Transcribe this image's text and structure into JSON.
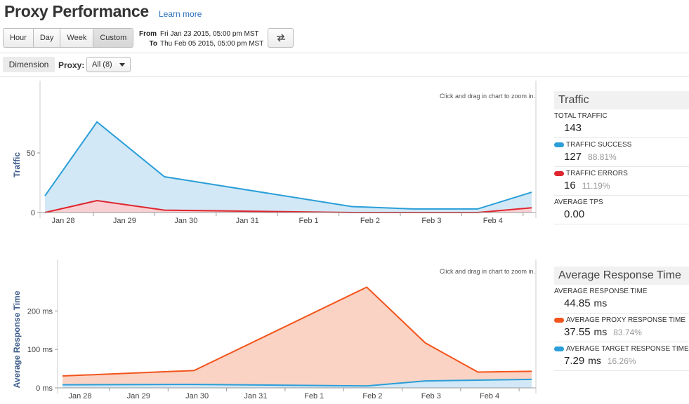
{
  "header": {
    "title": "Proxy Performance",
    "learn_more": "Learn more"
  },
  "toolbar": {
    "ranges": [
      "Hour",
      "Day",
      "Week",
      "Custom"
    ],
    "active_range": "Custom",
    "from_label": "From",
    "from_value": "Fri Jan 23 2015, 05:00 pm MST",
    "to_label": "To",
    "to_value": "Thu Feb 05 2015, 05:00 pm MST",
    "swap_icon": "swap-arrows-icon"
  },
  "filter": {
    "dimension_label": "Dimension",
    "proxy_label": "Proxy:",
    "proxy_selected": "All (8)"
  },
  "zoom_hint": "Click and drag in chart to zoom in.",
  "traffic_panel": {
    "title": "Traffic",
    "metrics": [
      {
        "label": "TOTAL TRAFFIC",
        "value": "143",
        "pct": "",
        "color": ""
      },
      {
        "label": "TRAFFIC SUCCESS",
        "value": "127",
        "pct": "88.81%",
        "color": "#2b9ed8"
      },
      {
        "label": "TRAFFIC ERRORS",
        "value": "16",
        "pct": "11.19%",
        "color": "#e0262f"
      },
      {
        "label": "AVERAGE TPS",
        "value": "0.00",
        "pct": "",
        "color": ""
      }
    ]
  },
  "response_panel": {
    "title": "Average Response Time",
    "metrics": [
      {
        "label": "AVERAGE RESPONSE TIME",
        "value": "44.85",
        "unit": "ms",
        "pct": "",
        "color": ""
      },
      {
        "label": "AVERAGE PROXY RESPONSE TIME",
        "value": "37.55",
        "unit": "ms",
        "pct": "83.74%",
        "color": "#f2541b"
      },
      {
        "label": "AVERAGE TARGET RESPONSE TIME",
        "value": "7.29",
        "unit": "ms",
        "pct": "16.26%",
        "color": "#2b9ed8"
      }
    ]
  },
  "chart_data": [
    {
      "type": "area",
      "ylabel": "Traffic",
      "ylim": [
        0,
        90
      ],
      "yticks": [
        {
          "value": 0,
          "label": "0"
        },
        {
          "value": 50,
          "label": "50"
        }
      ],
      "xlim": [
        0,
        8.9
      ],
      "xticks": [
        {
          "value": 0,
          "label": "Jan 28"
        },
        {
          "value": 1,
          "label": "Jan 29"
        },
        {
          "value": 2,
          "label": "Jan 30"
        },
        {
          "value": 3,
          "label": "Jan 31"
        },
        {
          "value": 4,
          "label": "Feb 1"
        },
        {
          "value": 5,
          "label": "Feb 2"
        },
        {
          "value": 6,
          "label": "Feb 3"
        },
        {
          "value": 7,
          "label": "Feb 4"
        }
      ],
      "series": [
        {
          "color": "#2b9ed8",
          "fill": "#d2e8f6",
          "x": [
            -0.3,
            0.55,
            1.65,
            4.7,
            5.7,
            6.75,
            8.83
          ],
          "y": [
            14,
            76,
            30,
            5,
            3,
            3,
            17
          ]
        },
        {
          "color": "#e0262f",
          "fill": "#f8d0d3",
          "x": [
            -0.3,
            0.55,
            1.65,
            4.7,
            5.7,
            6.75,
            8.83
          ],
          "y": [
            0,
            10,
            2,
            0,
            0,
            0,
            4
          ]
        }
      ]
    },
    {
      "type": "area",
      "ylabel": "Average Response Time",
      "ylim": [
        0,
        270
      ],
      "yticks": [
        {
          "value": 0,
          "label": "0 ms"
        },
        {
          "value": 100,
          "label": "100 ms"
        },
        {
          "value": 200,
          "label": "200 ms"
        }
      ],
      "xlim": [
        0,
        8.1
      ],
      "xticks": [
        {
          "value": 0,
          "label": "Jan 28"
        },
        {
          "value": 1,
          "label": "Jan 29"
        },
        {
          "value": 2,
          "label": "Jan 30"
        },
        {
          "value": 3,
          "label": "Jan 31"
        },
        {
          "value": 4,
          "label": "Feb 1"
        },
        {
          "value": 5,
          "label": "Feb 2"
        },
        {
          "value": 6,
          "label": "Feb 3"
        },
        {
          "value": 7,
          "label": "Feb 4"
        }
      ],
      "series": [
        {
          "color": "#f2541b",
          "fill": "#fbd3c4",
          "x": [
            -0.3,
            1.95,
            4.9,
            5.9,
            6.8,
            7.9
          ],
          "y": [
            31,
            45,
            262,
            117,
            41,
            43
          ]
        },
        {
          "color": "#2b9ed8",
          "fill": "#d2e8f6",
          "x": [
            -0.3,
            1.95,
            4.9,
            5.9,
            6.8,
            7.9
          ],
          "y": [
            8,
            9,
            5,
            18,
            20,
            22
          ]
        }
      ]
    }
  ]
}
